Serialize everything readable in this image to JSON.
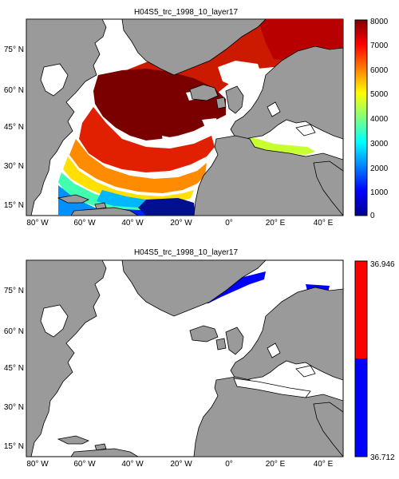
{
  "panels": [
    {
      "title": "H04S5_trc_1998_10_layer17",
      "colorbar": {
        "type": "continuous",
        "ticks": [
          "0",
          "1000",
          "2000",
          "3000",
          "4000",
          "5000",
          "6000",
          "7000",
          "8000"
        ],
        "min": 0,
        "max": 8000
      }
    },
    {
      "title": "H04S5_trc_1998_10_layer17",
      "colorbar": {
        "type": "binary",
        "top_label": "36.946",
        "bottom_label": "36.712",
        "colors": [
          "#ff0000",
          "#0000ff"
        ]
      }
    }
  ],
  "axes": {
    "x_ticks": [
      "80° W",
      "60° W",
      "40° W",
      "20° W",
      "0°",
      "20° E",
      "40° E"
    ],
    "y_ticks": [
      "75° N",
      "60° N",
      "45° N",
      "30° N",
      "15° N"
    ]
  },
  "colors": {
    "land": "#9a9a9a",
    "ocean_empty": "#ffffff",
    "coast": "#000000"
  }
}
